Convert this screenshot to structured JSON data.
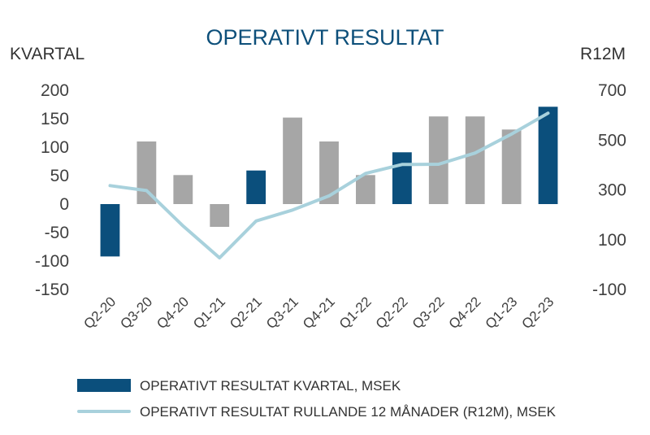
{
  "chart_data": {
    "type": "bar",
    "title": "OPERATIVT RESULTAT",
    "ylabel_left": "KVARTAL",
    "ylabel_right": "R12M",
    "categories": [
      "Q2-20",
      "Q3-20",
      "Q4-20",
      "Q1-21",
      "Q2-21",
      "Q3-21",
      "Q4-21",
      "Q1-22",
      "Q2-22",
      "Q3-22",
      "Q4-22",
      "Q1-23",
      "Q2-23"
    ],
    "ylim_left": [
      -150,
      200
    ],
    "yticks_left": [
      "200",
      "150",
      "100",
      "50",
      "0",
      "-50",
      "-100",
      "-150"
    ],
    "ylim_right": [
      -100,
      700
    ],
    "yticks_right": [
      "700",
      "500",
      "300",
      "100",
      "-100"
    ],
    "grid": false,
    "legend_position": "bottom",
    "series": [
      {
        "name": "OPERATIVT RESULTAT KVARTAL, MSEK",
        "kind": "bar",
        "axis": "left",
        "values": [
          -92,
          110,
          51,
          -40,
          59,
          152,
          110,
          51,
          91,
          154,
          154,
          131,
          171
        ],
        "highlight": [
          true,
          false,
          false,
          false,
          true,
          false,
          false,
          false,
          true,
          false,
          false,
          false,
          true
        ]
      },
      {
        "name": "OPERATIVT RESULTAT RULLANDE 12 MÅNADER (R12M), MSEK",
        "kind": "line",
        "axis": "right",
        "values": [
          317,
          297,
          155,
          27,
          175,
          219,
          276,
          366,
          402,
          403,
          448,
          524,
          608
        ]
      }
    ],
    "colors": {
      "highlight_bar": "#0b4f7c",
      "bar": "#a6a6a6",
      "line": "#a8d1dc",
      "title": "#0d4f7a"
    }
  }
}
